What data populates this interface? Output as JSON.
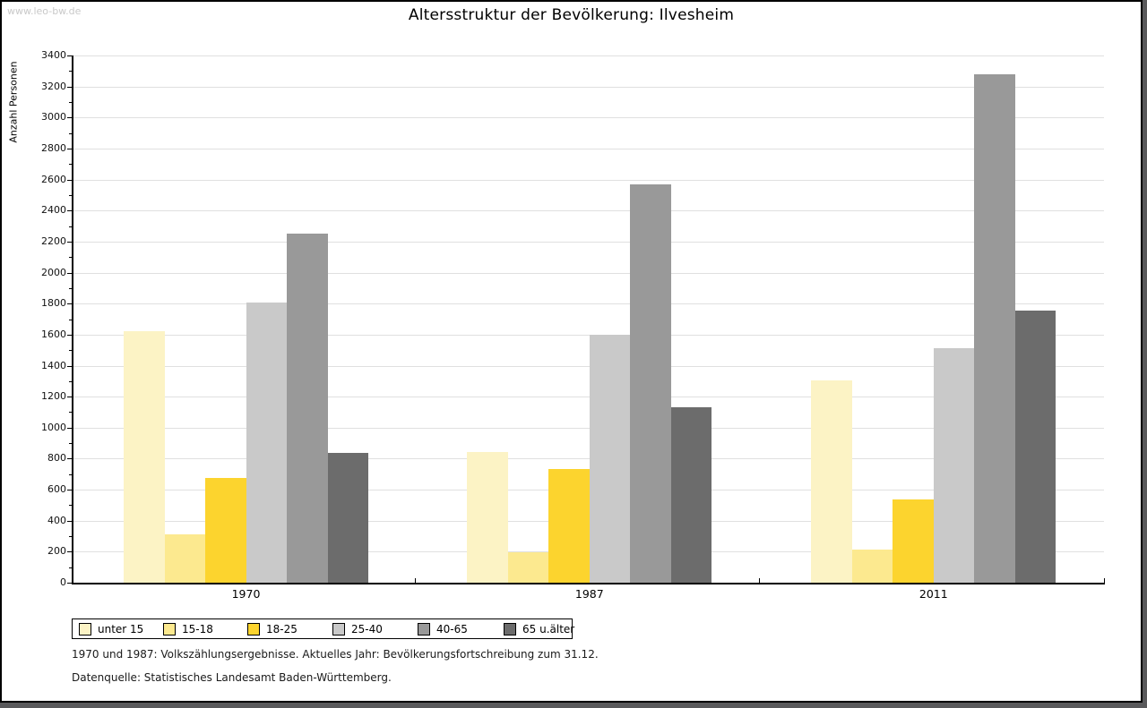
{
  "window": {
    "watermark": "www.leo-bw.de"
  },
  "title": "Altersstruktur der Bevölkerung: Ilvesheim",
  "chart_data": {
    "type": "bar",
    "title": "Altersstruktur der Bevölkerung: Ilvesheim",
    "xlabel": "",
    "ylabel": "Anzahl Personen",
    "categories": [
      "1970",
      "1987",
      "2011"
    ],
    "series": [
      {
        "name": "unter 15",
        "color": "#FCF3C5",
        "values": [
          1625,
          845,
          1305
        ]
      },
      {
        "name": "15-18",
        "color": "#FCE98F",
        "values": [
          310,
          195,
          215
        ]
      },
      {
        "name": "18-25",
        "color": "#FCD42E",
        "values": [
          675,
          735,
          535
        ]
      },
      {
        "name": "25-40",
        "color": "#C9C9C9",
        "values": [
          1805,
          1600,
          1510
        ]
      },
      {
        "name": "40-65",
        "color": "#999999",
        "values": [
          2250,
          2570,
          3280
        ]
      },
      {
        "name": "65 u.älter",
        "color": "#6C6C6C",
        "values": [
          840,
          1130,
          1755
        ]
      }
    ],
    "ylim": [
      0,
      3400
    ],
    "ytick_step": 200,
    "yminor_step": 100,
    "grid": true,
    "gridline_color": "#E0E0E0",
    "axis_color": "#000000",
    "legend_position": "bottom-left"
  },
  "footnotes": {
    "line1": "1970 und 1987: Volkszählungsergebnisse. Aktuelles Jahr: Bevölkerungsfortschreibung zum 31.12.",
    "line2": "Datenquelle: Statistisches Landesamt Baden-Württemberg."
  }
}
